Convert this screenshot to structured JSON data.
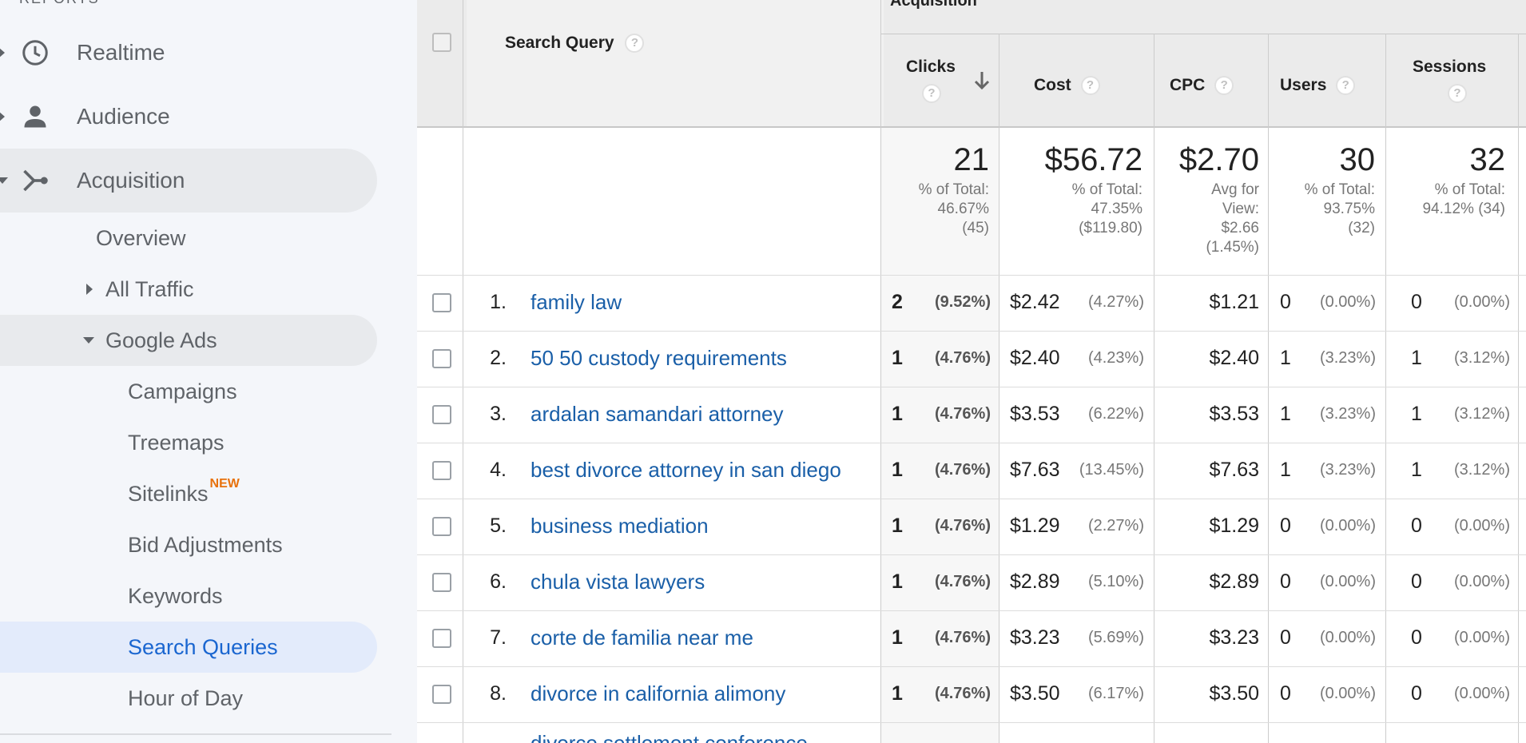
{
  "sidebar": {
    "section_label": "REPORTS",
    "top_items": [
      {
        "label": "Realtime",
        "icon": "clock-icon"
      },
      {
        "label": "Audience",
        "icon": "person-icon"
      },
      {
        "label": "Acquisition",
        "icon": "acquisition-icon"
      }
    ],
    "acquisition_items": [
      {
        "label": "Overview"
      },
      {
        "label": "All Traffic"
      },
      {
        "label": "Google Ads"
      }
    ],
    "google_ads_items": [
      {
        "label": "Campaigns"
      },
      {
        "label": "Treemaps"
      },
      {
        "label": "Sitelinks",
        "badge": "NEW"
      },
      {
        "label": "Bid Adjustments"
      },
      {
        "label": "Keywords"
      },
      {
        "label": "Search Queries"
      },
      {
        "label": "Hour of Day"
      }
    ]
  },
  "table": {
    "group_header": "Acquisition",
    "columns": {
      "search_query": "Search Query",
      "clicks": "Clicks",
      "cost": "Cost",
      "cpc": "CPC",
      "users": "Users",
      "sessions": "Sessions"
    },
    "help_glyph": "?",
    "totals": {
      "clicks": {
        "value": "21",
        "sub": [
          "% of Total:",
          "46.67%",
          "(45)"
        ]
      },
      "cost": {
        "value": "$56.72",
        "sub": [
          "% of Total:",
          "47.35%",
          "($119.80)"
        ]
      },
      "cpc": {
        "value": "$2.70",
        "sub": [
          "Avg for",
          "View:",
          "$2.66",
          "(1.45%)"
        ]
      },
      "users": {
        "value": "30",
        "sub": [
          "% of Total:",
          "93.75%",
          "(32)"
        ]
      },
      "sessions": {
        "value": "32",
        "sub": [
          "% of Total:",
          "94.12% (34)"
        ]
      }
    },
    "rows": [
      {
        "num": "1.",
        "query": "family law",
        "clicks": "2",
        "clicks_pct": "(9.52%)",
        "cost": "$2.42",
        "cost_pct": "(4.27%)",
        "cpc": "$1.21",
        "users": "0",
        "users_pct": "(0.00%)",
        "sessions": "0",
        "sessions_pct": "(0.00%)"
      },
      {
        "num": "2.",
        "query": "50 50 custody requirements",
        "clicks": "1",
        "clicks_pct": "(4.76%)",
        "cost": "$2.40",
        "cost_pct": "(4.23%)",
        "cpc": "$2.40",
        "users": "1",
        "users_pct": "(3.23%)",
        "sessions": "1",
        "sessions_pct": "(3.12%)"
      },
      {
        "num": "3.",
        "query": "ardalan samandari attorney",
        "clicks": "1",
        "clicks_pct": "(4.76%)",
        "cost": "$3.53",
        "cost_pct": "(6.22%)",
        "cpc": "$3.53",
        "users": "1",
        "users_pct": "(3.23%)",
        "sessions": "1",
        "sessions_pct": "(3.12%)"
      },
      {
        "num": "4.",
        "query": "best divorce attorney in san diego",
        "clicks": "1",
        "clicks_pct": "(4.76%)",
        "cost": "$7.63",
        "cost_pct": "(13.45%)",
        "cpc": "$7.63",
        "users": "1",
        "users_pct": "(3.23%)",
        "sessions": "1",
        "sessions_pct": "(3.12%)"
      },
      {
        "num": "5.",
        "query": "business mediation",
        "clicks": "1",
        "clicks_pct": "(4.76%)",
        "cost": "$1.29",
        "cost_pct": "(2.27%)",
        "cpc": "$1.29",
        "users": "0",
        "users_pct": "(0.00%)",
        "sessions": "0",
        "sessions_pct": "(0.00%)"
      },
      {
        "num": "6.",
        "query": "chula vista lawyers",
        "clicks": "1",
        "clicks_pct": "(4.76%)",
        "cost": "$2.89",
        "cost_pct": "(5.10%)",
        "cpc": "$2.89",
        "users": "0",
        "users_pct": "(0.00%)",
        "sessions": "0",
        "sessions_pct": "(0.00%)"
      },
      {
        "num": "7.",
        "query": "corte de familia near me",
        "clicks": "1",
        "clicks_pct": "(4.76%)",
        "cost": "$3.23",
        "cost_pct": "(5.69%)",
        "cpc": "$3.23",
        "users": "0",
        "users_pct": "(0.00%)",
        "sessions": "0",
        "sessions_pct": "(0.00%)"
      },
      {
        "num": "8.",
        "query": "divorce in california alimony",
        "clicks": "1",
        "clicks_pct": "(4.76%)",
        "cost": "$3.50",
        "cost_pct": "(6.17%)",
        "cpc": "$3.50",
        "users": "0",
        "users_pct": "(0.00%)",
        "sessions": "0",
        "sessions_pct": "(0.00%)"
      }
    ],
    "partial_row": {
      "query": "divorce settlement conference"
    }
  }
}
